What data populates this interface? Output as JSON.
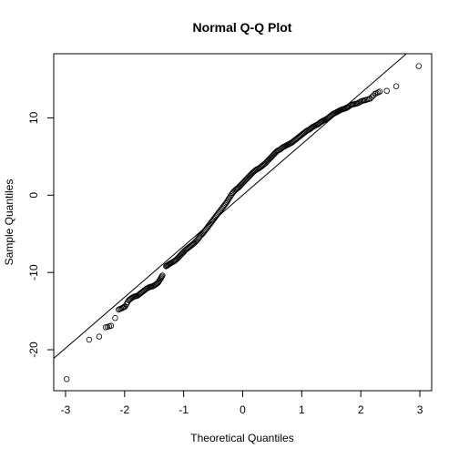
{
  "chart_data": {
    "type": "scatter",
    "title": "Normal Q-Q Plot",
    "xlabel": "Theoretical Quantiles",
    "ylabel": "Sample Quantiles",
    "xlim": [
      -3.2,
      3.2
    ],
    "ylim": [
      -25.3,
      18.3
    ],
    "x_ticks": [
      -3,
      -2,
      -1,
      0,
      1,
      2,
      3
    ],
    "y_ticks": [
      -20,
      -10,
      0,
      10
    ],
    "grid": false,
    "reference_line": {
      "intercept": 0.0,
      "slope": 6.6
    },
    "points": [
      [
        -2.98,
        -23.8
      ],
      [
        -2.6,
        -18.7
      ],
      [
        -2.43,
        -18.3
      ],
      [
        -2.32,
        -17.1
      ],
      [
        -2.23,
        -16.9
      ],
      [
        -2.16,
        -15.9
      ],
      [
        -2.1,
        -14.8
      ],
      [
        -2.04,
        -14.6
      ],
      [
        -1.99,
        -14.4
      ],
      [
        -1.93,
        -13.6
      ],
      [
        -1.88,
        -13.3
      ],
      [
        -1.83,
        -13.1
      ],
      [
        -1.78,
        -13.0
      ],
      [
        -1.73,
        -12.7
      ],
      [
        -1.68,
        -12.4
      ],
      [
        -1.63,
        -12.1
      ],
      [
        -1.58,
        -11.9
      ],
      [
        -1.53,
        -11.8
      ],
      [
        -1.48,
        -11.6
      ],
      [
        -1.43,
        -11.3
      ],
      [
        -1.39,
        -10.8
      ],
      [
        -1.36,
        -10.4
      ],
      [
        -1.3,
        -9.2
      ],
      [
        -1.26,
        -9.0
      ],
      [
        -1.22,
        -8.8
      ],
      [
        -1.17,
        -8.6
      ],
      [
        -1.12,
        -8.3
      ],
      [
        -1.07,
        -7.9
      ],
      [
        -1.02,
        -7.5
      ],
      [
        -0.97,
        -7.1
      ],
      [
        -0.92,
        -6.8
      ],
      [
        -0.87,
        -6.5
      ],
      [
        -0.82,
        -6.2
      ],
      [
        -0.77,
        -5.8
      ],
      [
        -0.72,
        -5.3
      ],
      [
        -0.67,
        -4.9
      ],
      [
        -0.62,
        -4.4
      ],
      [
        -0.57,
        -3.9
      ],
      [
        -0.52,
        -3.4
      ],
      [
        -0.47,
        -2.9
      ],
      [
        -0.42,
        -2.4
      ],
      [
        -0.37,
        -1.9
      ],
      [
        -0.32,
        -1.4
      ],
      [
        -0.27,
        -0.9
      ],
      [
        -0.22,
        -0.3
      ],
      [
        -0.17,
        0.3
      ],
      [
        -0.12,
        0.7
      ],
      [
        -0.07,
        1.0
      ],
      [
        -0.02,
        1.4
      ],
      [
        0.03,
        1.8
      ],
      [
        0.08,
        2.2
      ],
      [
        0.13,
        2.6
      ],
      [
        0.18,
        3.0
      ],
      [
        0.23,
        3.3
      ],
      [
        0.28,
        3.5
      ],
      [
        0.33,
        3.8
      ],
      [
        0.38,
        4.1
      ],
      [
        0.43,
        4.5
      ],
      [
        0.48,
        4.9
      ],
      [
        0.53,
        5.3
      ],
      [
        0.58,
        5.7
      ],
      [
        0.63,
        5.9
      ],
      [
        0.68,
        6.2
      ],
      [
        0.73,
        6.4
      ],
      [
        0.78,
        6.6
      ],
      [
        0.83,
        6.8
      ],
      [
        0.88,
        7.1
      ],
      [
        0.93,
        7.4
      ],
      [
        0.98,
        7.7
      ],
      [
        1.03,
        8.0
      ],
      [
        1.08,
        8.3
      ],
      [
        1.13,
        8.5
      ],
      [
        1.18,
        8.8
      ],
      [
        1.23,
        9.0
      ],
      [
        1.28,
        9.2
      ],
      [
        1.33,
        9.5
      ],
      [
        1.38,
        9.7
      ],
      [
        1.43,
        9.9
      ],
      [
        1.48,
        10.2
      ],
      [
        1.53,
        10.5
      ],
      [
        1.58,
        10.7
      ],
      [
        1.63,
        10.9
      ],
      [
        1.68,
        11.1
      ],
      [
        1.73,
        11.2
      ],
      [
        1.78,
        11.4
      ],
      [
        1.84,
        11.7
      ],
      [
        1.9,
        11.8
      ],
      [
        1.95,
        11.9
      ],
      [
        2.02,
        12.2
      ],
      [
        2.08,
        12.3
      ],
      [
        2.16,
        12.5
      ],
      [
        2.24,
        13.1
      ],
      [
        2.32,
        13.4
      ],
      [
        2.44,
        13.5
      ],
      [
        2.6,
        14.1
      ],
      [
        2.98,
        16.7
      ]
    ]
  }
}
